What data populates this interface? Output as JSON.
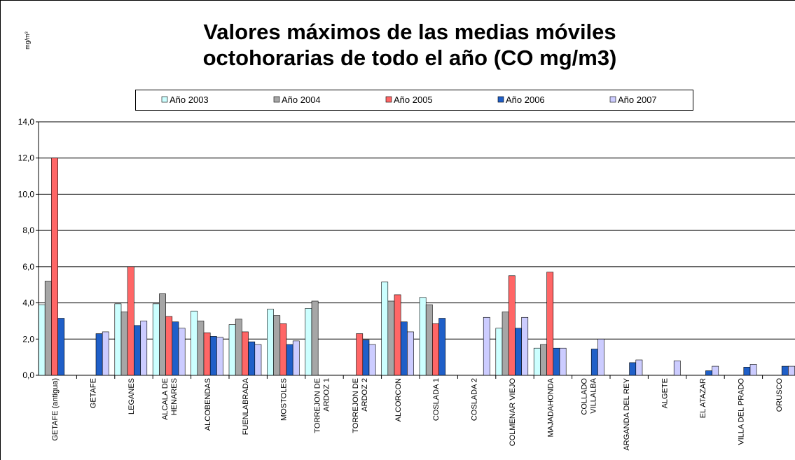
{
  "chart_data": {
    "type": "bar",
    "title": "Valores máximos de las medias móviles\noctohorarias de todo el año (CO mg/m3)",
    "y_label": "mg/m³",
    "categories": [
      "GETAFE  (antigua)",
      "GETAFE",
      "LEGANES",
      "ALCALA DE\nHENARES",
      "ALCOBENDAS",
      "FUENLABRADA",
      "MOSTOLES",
      "TORREJON DE\nARDOZ 1",
      "TORREJON DE\nARDOZ 2",
      "ALCORCON",
      "COSLADA 1",
      "COSLADA 2",
      "COLMENAR VIEJO",
      "MAJADAHONDA",
      "COLLADO\nVILLALBA",
      "ARGANDA DEL REY",
      "ALGETE",
      "EL ATAZAR",
      "VILLA DEL PRADO",
      "ORUSCO"
    ],
    "series": [
      {
        "name": "Año 2003",
        "color": "#ccffff",
        "values": [
          3.9,
          null,
          3.95,
          3.95,
          3.55,
          2.8,
          3.65,
          3.7,
          null,
          5.15,
          4.3,
          null,
          2.6,
          1.5,
          null,
          null,
          null,
          null,
          null,
          null
        ]
      },
      {
        "name": "Año 2004",
        "color": "#a6a6a6",
        "values": [
          5.2,
          null,
          3.5,
          4.5,
          3.0,
          3.1,
          3.3,
          4.1,
          null,
          4.1,
          3.9,
          null,
          3.5,
          1.7,
          null,
          null,
          null,
          null,
          null,
          null
        ]
      },
      {
        "name": "Año 2005",
        "color": "#ff6666",
        "values": [
          12.0,
          null,
          6.0,
          3.25,
          2.35,
          2.4,
          2.85,
          null,
          2.3,
          4.45,
          2.85,
          null,
          5.5,
          5.7,
          null,
          null,
          null,
          null,
          null,
          null
        ]
      },
      {
        "name": "Año 2006",
        "color": "#1f5fc8",
        "values": [
          3.15,
          2.3,
          2.75,
          2.95,
          2.15,
          1.85,
          1.7,
          null,
          1.95,
          2.95,
          3.15,
          null,
          2.6,
          1.5,
          1.45,
          0.7,
          null,
          0.25,
          0.45,
          0.5
        ]
      },
      {
        "name": "Año 2007",
        "color": "#ccccff",
        "values": [
          null,
          2.4,
          3.0,
          2.6,
          2.1,
          1.7,
          1.9,
          null,
          1.7,
          2.4,
          null,
          3.2,
          3.2,
          1.5,
          2.0,
          0.85,
          0.8,
          0.5,
          0.6,
          0.5
        ]
      }
    ],
    "ylim": [
      0,
      14
    ],
    "yticks": [
      {
        "value": 0,
        "label": "0,0"
      },
      {
        "value": 2,
        "label": "2,0"
      },
      {
        "value": 4,
        "label": "4,0"
      },
      {
        "value": 6,
        "label": "6,0"
      },
      {
        "value": 8,
        "label": "8,0"
      },
      {
        "value": 10,
        "label": "10,0"
      },
      {
        "value": 12,
        "label": "12,0"
      },
      {
        "value": 14,
        "label": "14,0"
      }
    ],
    "grid": true
  }
}
